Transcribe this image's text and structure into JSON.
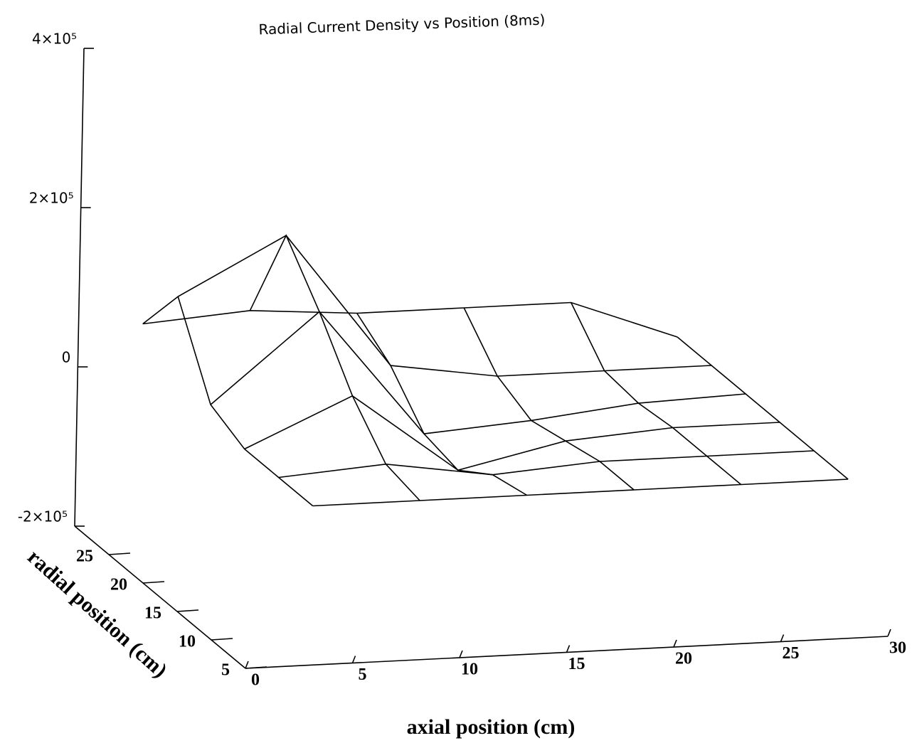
{
  "chart_data": {
    "type": "surface",
    "title": "Radial Current Density vs Position (8ms)",
    "xlabel": "axial position (cm)",
    "ylabel": "radial position (cm)",
    "x": [
      3,
      8,
      13,
      18,
      23,
      28
    ],
    "y": [
      5,
      10,
      15,
      20,
      25,
      30
    ],
    "z": [
      [
        0,
        0,
        0,
        0,
        0,
        0
      ],
      [
        0,
        10000,
        -10000,
        0,
        0,
        0
      ],
      [
        0,
        60000,
        -40000,
        -10000,
        0,
        0
      ],
      [
        20000,
        130000,
        -30000,
        -20000,
        -5000,
        0
      ],
      [
        120000,
        190000,
        20000,
        0,
        0,
        0
      ],
      [
        50000,
        60000,
        50000,
        50000,
        50000,
        0
      ]
    ],
    "color": "#000000",
    "xlim": [
      0,
      30
    ],
    "xticks": [
      0,
      5,
      10,
      15,
      20,
      25,
      30
    ],
    "ylim": [
      5,
      30
    ],
    "yticks": [
      5,
      10,
      15,
      20,
      25
    ],
    "zlim": [
      -200000,
      400000
    ],
    "zticks": [
      {
        "value": -200000,
        "label": "-2×10⁵"
      },
      {
        "value": 0,
        "label": "0"
      },
      {
        "value": 200000,
        "label": "2×10⁵"
      },
      {
        "value": 400000,
        "label": "4×10⁵"
      }
    ]
  }
}
